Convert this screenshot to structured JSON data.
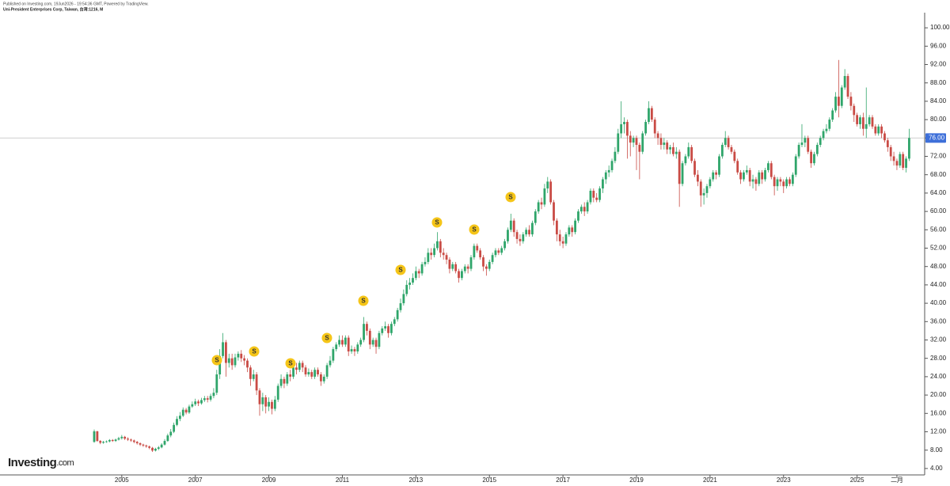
{
  "chart_data": {
    "type": "candlestick",
    "subtitle": "Published on Investing.com, 19Jun2026 - 19:54:36 GMT, Powered by TradingView.",
    "title": "Uni-President Enterprises Corp, Taiwan, 台湾:1216, M",
    "logo_main": "Investing",
    "logo_suffix": ".com",
    "up_color": "#2fa56a",
    "down_color": "#c94b45",
    "ylim": [
      2.6,
      103.3
    ],
    "yticks": [
      {
        "value": 4,
        "label": "4.00"
      },
      {
        "value": 8,
        "label": "8.00"
      },
      {
        "value": 12,
        "label": "12.00"
      },
      {
        "value": 16,
        "label": "16.00"
      },
      {
        "value": 20,
        "label": "20.00"
      },
      {
        "value": 24,
        "label": "24.00"
      },
      {
        "value": 28,
        "label": "28.00"
      },
      {
        "value": 32,
        "label": "32.00"
      },
      {
        "value": 36,
        "label": "36.00"
      },
      {
        "value": 40,
        "label": "40.00"
      },
      {
        "value": 44,
        "label": "44.00"
      },
      {
        "value": 48,
        "label": "48.00"
      },
      {
        "value": 52,
        "label": "52.00"
      },
      {
        "value": 56,
        "label": "56.00"
      },
      {
        "value": 60,
        "label": "60.00"
      },
      {
        "value": 64,
        "label": "64.00"
      },
      {
        "value": 68,
        "label": "68.00"
      },
      {
        "value": 72,
        "label": "72.00"
      },
      {
        "value": 76,
        "label": "76.00"
      },
      {
        "value": 80,
        "label": "80.00"
      },
      {
        "value": 84,
        "label": "84.00"
      },
      {
        "value": 88,
        "label": "88.00"
      },
      {
        "value": 92,
        "label": "92.00"
      },
      {
        "value": 96,
        "label": "96.00"
      },
      {
        "value": 100,
        "label": "100.00"
      }
    ],
    "last_price": {
      "value": 76,
      "label": "76.00"
    },
    "event_markers": [
      "S",
      "S",
      "S",
      "S",
      "S",
      "S",
      "S",
      "S",
      "S"
    ],
    "categories": [
      null,
      null,
      null,
      null,
      null,
      null,
      null,
      null,
      null,
      "2005",
      null,
      null,
      null,
      null,
      null,
      null,
      null,
      null,
      null,
      null,
      null,
      null,
      null,
      null,
      null,
      null,
      null,
      null,
      null,
      null,
      null,
      null,
      null,
      "2007",
      null,
      null,
      null,
      null,
      null,
      null,
      null,
      null,
      null,
      null,
      null,
      null,
      null,
      null,
      null,
      null,
      null,
      null,
      null,
      null,
      null,
      null,
      null,
      "2009",
      null,
      null,
      null,
      null,
      null,
      null,
      null,
      null,
      null,
      null,
      null,
      null,
      null,
      null,
      null,
      null,
      null,
      null,
      null,
      null,
      null,
      null,
      null,
      "2011",
      null,
      null,
      null,
      null,
      null,
      null,
      null,
      null,
      null,
      null,
      null,
      null,
      null,
      null,
      null,
      null,
      null,
      null,
      null,
      null,
      null,
      null,
      null,
      "2013",
      null,
      null,
      null,
      null,
      null,
      null,
      null,
      null,
      null,
      null,
      null,
      null,
      null,
      null,
      null,
      null,
      null,
      null,
      null,
      null,
      null,
      null,
      null,
      "2015",
      null,
      null,
      null,
      null,
      null,
      null,
      null,
      null,
      null,
      null,
      null,
      null,
      null,
      null,
      null,
      null,
      null,
      null,
      null,
      null,
      null,
      null,
      null,
      "2017",
      null,
      null,
      null,
      null,
      null,
      null,
      null,
      null,
      null,
      null,
      null,
      null,
      null,
      null,
      null,
      null,
      null,
      null,
      null,
      null,
      null,
      null,
      null,
      "2019",
      null,
      null,
      null,
      null,
      null,
      null,
      null,
      null,
      null,
      null,
      null,
      null,
      null,
      null,
      null,
      null,
      null,
      null,
      null,
      null,
      null,
      null,
      null,
      "2021",
      null,
      null,
      null,
      null,
      null,
      null,
      null,
      null,
      null,
      null,
      null,
      null,
      null,
      null,
      null,
      null,
      null,
      null,
      null,
      null,
      null,
      null,
      null,
      "2023",
      null,
      null,
      null,
      null,
      null,
      null,
      null,
      null,
      null,
      null,
      null,
      null,
      null,
      null,
      null,
      null,
      null,
      null,
      null,
      null,
      null,
      null,
      null,
      "2025",
      null,
      null,
      null,
      null,
      null,
      null,
      null,
      null,
      null,
      null,
      null,
      null,
      "二月",
      null,
      null,
      null,
      null
    ],
    "open": [
      9.8,
      12.1,
      10.0,
      9.6,
      9.8,
      9.9,
      10.2,
      10.0,
      10.3,
      10.6,
      10.9,
      10.5,
      10.3,
      10.1,
      9.8,
      9.5,
      9.2,
      9.0,
      8.8,
      8.5,
      7.9,
      8.3,
      8.6,
      9.2,
      10.0,
      11.2,
      12.0,
      13.5,
      14.8,
      15.5,
      16.8,
      16.2,
      17.5,
      18.0,
      18.6,
      18.2,
      18.9,
      19.3,
      19.0,
      19.8,
      20.5,
      24.5,
      28.5,
      31.5,
      27.0,
      28.0,
      26.5,
      28.2,
      29.0,
      28.0,
      27.5,
      26.0,
      23.5,
      24.5,
      21.0,
      18.0,
      19.5,
      17.5,
      18.5,
      17.0,
      19.0,
      22.0,
      23.5,
      22.5,
      24.5,
      24.0,
      26.0,
      25.5,
      27.0,
      26.0,
      24.5,
      25.0,
      24.0,
      25.5,
      24.5,
      23.0,
      24.0,
      26.5,
      27.5,
      30.0,
      31.0,
      32.0,
      31.0,
      32.5,
      29.5,
      30.0,
      29.5,
      31.0,
      32.0,
      35.5,
      34.0,
      31.0,
      32.0,
      30.5,
      33.5,
      34.5,
      35.0,
      33.5,
      35.5,
      36.5,
      38.5,
      40.0,
      42.0,
      44.0,
      44.5,
      45.5,
      47.0,
      46.5,
      48.5,
      49.0,
      51.0,
      50.5,
      52.0,
      53.5,
      51.0,
      50.5,
      49.5,
      47.5,
      48.5,
      47.0,
      45.5,
      47.0,
      48.0,
      47.5,
      50.0,
      52.5,
      51.5,
      50.0,
      48.0,
      47.5,
      49.0,
      50.5,
      51.5,
      51.0,
      52.0,
      53.5,
      56.0,
      58.0,
      55.5,
      54.0,
      53.5,
      55.0,
      56.0,
      55.0,
      57.5,
      60.0,
      62.0,
      61.5,
      65.0,
      66.5,
      62.0,
      58.0,
      55.0,
      53.5,
      53.0,
      55.0,
      56.5,
      55.5,
      58.0,
      60.0,
      61.0,
      60.0,
      62.0,
      64.5,
      63.0,
      62.5,
      65.0,
      67.0,
      68.5,
      69.0,
      71.0,
      73.0,
      77.0,
      79.0,
      79.5,
      76.5,
      75.0,
      76.0,
      74.5,
      73.0,
      77.0,
      79.5,
      82.5,
      80.0,
      77.0,
      76.0,
      74.5,
      75.0,
      73.5,
      74.0,
      72.5,
      73.0,
      66.0,
      70.5,
      72.0,
      74.0,
      71.0,
      68.0,
      66.5,
      63.5,
      64.0,
      65.5,
      67.0,
      68.5,
      68.0,
      72.0,
      74.5,
      76.0,
      74.0,
      73.0,
      71.0,
      68.5,
      67.0,
      68.5,
      69.0,
      66.5,
      67.0,
      66.0,
      68.5,
      67.0,
      69.0,
      70.5,
      67.5,
      65.5,
      67.0,
      66.5,
      65.5,
      67.0,
      66.0,
      68.0,
      72.0,
      74.5,
      75.0,
      76.0,
      73.0,
      70.5,
      72.5,
      74.5,
      76.0,
      77.5,
      78.0,
      80.0,
      82.0,
      85.0,
      83.0,
      87.0,
      89.5,
      85.0,
      83.0,
      81.0,
      79.0,
      80.5,
      78.0,
      79.0,
      80.5,
      78.5,
      77.0,
      78.5,
      77.0,
      75.5,
      74.0,
      72.0,
      71.0,
      70.0,
      72.5,
      69.5,
      71.5
    ],
    "high": [
      12.5,
      12.2,
      10.2,
      10.0,
      10.1,
      10.4,
      10.4,
      10.5,
      10.9,
      11.3,
      11.1,
      10.8,
      10.5,
      10.3,
      10.0,
      9.7,
      9.4,
      9.2,
      9.0,
      8.7,
      8.5,
      8.9,
      9.5,
      10.4,
      11.6,
      12.6,
      14.0,
      15.4,
      16.3,
      17.3,
      17.2,
      17.9,
      18.6,
      19.2,
      19.0,
      19.4,
      19.8,
      19.8,
      20.3,
      21.5,
      25.5,
      30.0,
      33.5,
      32.0,
      29.0,
      29.0,
      29.0,
      29.5,
      29.8,
      28.7,
      28.0,
      26.5,
      25.5,
      25.0,
      21.5,
      20.5,
      20.0,
      19.5,
      19.0,
      19.8,
      22.5,
      24.5,
      24.0,
      25.0,
      25.5,
      26.5,
      27.0,
      27.5,
      27.5,
      26.5,
      25.8,
      25.5,
      26.0,
      26.0,
      25.0,
      24.5,
      27.0,
      28.5,
      30.5,
      31.5,
      33.0,
      33.0,
      33.0,
      33.0,
      30.8,
      30.5,
      31.5,
      32.5,
      37.0,
      36.0,
      34.5,
      32.5,
      32.5,
      34.0,
      35.0,
      36.0,
      35.5,
      36.0,
      37.0,
      39.0,
      41.0,
      43.0,
      45.0,
      45.5,
      46.5,
      48.0,
      47.5,
      49.0,
      50.0,
      52.0,
      52.0,
      53.0,
      55.5,
      54.0,
      52.0,
      51.0,
      50.0,
      49.0,
      49.0,
      47.5,
      47.5,
      48.5,
      48.5,
      50.5,
      53.0,
      53.0,
      52.0,
      50.5,
      48.5,
      49.5,
      51.0,
      52.0,
      52.0,
      52.5,
      54.0,
      56.5,
      59.5,
      58.5,
      56.0,
      55.0,
      55.5,
      56.5,
      57.0,
      58.0,
      60.5,
      62.5,
      63.0,
      66.0,
      67.5,
      67.0,
      62.5,
      58.5,
      56.0,
      54.5,
      55.5,
      57.0,
      57.0,
      58.5,
      60.5,
      61.5,
      62.0,
      62.5,
      65.0,
      65.0,
      64.0,
      65.5,
      67.5,
      69.0,
      70.0,
      71.5,
      74.0,
      78.0,
      84.0,
      80.5,
      80.0,
      77.5,
      76.5,
      76.5,
      75.0,
      77.5,
      80.0,
      84.0,
      83.0,
      80.5,
      77.5,
      77.0,
      76.0,
      75.5,
      74.5,
      75.0,
      74.0,
      73.5,
      71.0,
      72.5,
      75.0,
      74.5,
      71.5,
      69.0,
      67.0,
      65.0,
      66.0,
      67.5,
      69.0,
      69.0,
      72.5,
      75.0,
      77.5,
      76.5,
      74.5,
      73.5,
      71.5,
      69.0,
      69.0,
      70.0,
      69.5,
      68.0,
      67.5,
      69.0,
      69.0,
      69.5,
      71.0,
      71.0,
      68.0,
      67.5,
      67.5,
      67.0,
      67.5,
      67.5,
      68.5,
      72.5,
      75.0,
      79.0,
      76.5,
      76.5,
      73.5,
      73.0,
      75.0,
      76.5,
      78.0,
      79.0,
      80.5,
      82.5,
      86.0,
      93.0,
      87.5,
      91.0,
      90.0,
      86.0,
      83.5,
      81.5,
      81.0,
      81.5,
      87.0,
      81.0,
      81.0,
      79.0,
      79.0,
      79.0,
      77.5,
      76.0,
      74.5,
      73.0,
      71.5,
      73.0,
      73.0,
      72.0,
      78.0
    ],
    "low": [
      9.6,
      9.8,
      9.3,
      9.4,
      9.6,
      9.7,
      9.8,
      9.8,
      10.1,
      10.3,
      10.2,
      10.0,
      9.8,
      9.5,
      9.2,
      8.9,
      8.7,
      8.5,
      8.2,
      7.6,
      7.7,
      8.0,
      8.4,
      9.0,
      9.8,
      10.8,
      11.7,
      13.2,
      14.3,
      15.2,
      15.8,
      15.9,
      17.2,
      17.6,
      17.6,
      17.9,
      18.5,
      18.4,
      18.6,
      19.3,
      20.0,
      23.5,
      28.0,
      24.0,
      26.0,
      25.5,
      26.0,
      27.5,
      27.2,
      26.5,
      25.0,
      22.0,
      23.0,
      20.0,
      15.5,
      16.5,
      16.0,
      16.5,
      15.8,
      16.5,
      18.5,
      21.5,
      21.5,
      22.0,
      23.0,
      23.5,
      24.5,
      25.0,
      25.0,
      24.0,
      24.0,
      23.5,
      23.5,
      24.0,
      22.0,
      22.5,
      23.5,
      26.0,
      27.0,
      29.5,
      30.5,
      30.5,
      30.5,
      28.5,
      29.0,
      28.5,
      29.0,
      30.5,
      31.5,
      33.0,
      30.0,
      30.5,
      29.0,
      30.0,
      33.0,
      34.0,
      32.5,
      33.0,
      35.0,
      36.0,
      38.0,
      39.5,
      41.5,
      43.0,
      44.0,
      45.0,
      45.5,
      46.0,
      48.0,
      48.5,
      49.5,
      50.0,
      51.5,
      50.0,
      49.5,
      48.5,
      46.5,
      47.0,
      46.5,
      44.5,
      45.0,
      46.5,
      46.5,
      47.0,
      49.5,
      51.0,
      49.5,
      47.0,
      46.0,
      47.0,
      48.5,
      50.0,
      50.5,
      50.5,
      51.5,
      53.0,
      55.5,
      54.5,
      53.0,
      52.5,
      53.0,
      54.5,
      54.5,
      54.5,
      57.0,
      59.5,
      60.5,
      61.0,
      64.0,
      61.5,
      57.0,
      53.5,
      52.5,
      52.0,
      52.5,
      54.5,
      54.5,
      55.0,
      57.5,
      59.5,
      59.0,
      59.5,
      61.5,
      62.0,
      62.0,
      62.0,
      64.0,
      66.0,
      67.5,
      68.5,
      70.5,
      72.5,
      76.0,
      77.0,
      71.5,
      72.0,
      74.0,
      69.0,
      67.0,
      72.5,
      76.5,
      79.0,
      79.5,
      76.0,
      74.5,
      73.5,
      73.5,
      72.5,
      72.5,
      72.0,
      71.5,
      61.0,
      65.5,
      70.0,
      71.5,
      70.5,
      67.5,
      65.5,
      61.0,
      61.5,
      63.0,
      65.0,
      66.5,
      67.0,
      67.5,
      71.5,
      74.0,
      73.5,
      72.5,
      70.5,
      68.0,
      66.0,
      66.5,
      68.0,
      65.5,
      65.0,
      64.5,
      65.5,
      66.0,
      66.5,
      68.5,
      67.0,
      63.5,
      64.5,
      65.5,
      64.0,
      65.0,
      65.5,
      65.5,
      67.5,
      71.5,
      74.0,
      74.0,
      72.5,
      69.5,
      70.0,
      72.0,
      74.0,
      75.5,
      77.0,
      77.5,
      79.5,
      81.5,
      80.5,
      82.5,
      86.5,
      84.5,
      82.0,
      79.5,
      78.5,
      78.0,
      76.5,
      76.0,
      78.5,
      78.0,
      76.5,
      76.5,
      76.0,
      75.0,
      73.0,
      71.0,
      70.0,
      69.0,
      69.5,
      69.0,
      68.5,
      71.0
    ],
    "close": [
      12.1,
      10.0,
      9.6,
      9.8,
      9.9,
      10.2,
      10.0,
      10.3,
      10.6,
      10.9,
      10.5,
      10.3,
      10.1,
      9.8,
      9.5,
      9.2,
      9.0,
      8.8,
      8.5,
      7.9,
      8.3,
      8.6,
      9.2,
      10.0,
      11.2,
      12.0,
      13.5,
      14.8,
      15.5,
      16.8,
      16.2,
      17.5,
      18.0,
      18.6,
      18.2,
      18.9,
      19.3,
      19.0,
      19.8,
      20.5,
      24.5,
      28.5,
      31.5,
      27.0,
      28.0,
      26.5,
      28.2,
      29.0,
      28.0,
      27.5,
      26.0,
      23.5,
      24.5,
      21.0,
      18.0,
      19.5,
      17.5,
      18.5,
      17.0,
      19.0,
      22.0,
      23.5,
      22.5,
      24.5,
      24.0,
      26.0,
      25.5,
      27.0,
      26.0,
      24.5,
      25.0,
      24.0,
      25.5,
      24.5,
      23.0,
      24.0,
      26.5,
      27.5,
      30.0,
      31.0,
      32.0,
      31.0,
      32.5,
      29.5,
      30.0,
      29.5,
      31.0,
      32.0,
      35.5,
      34.0,
      31.0,
      32.0,
      30.5,
      33.5,
      34.5,
      35.0,
      33.5,
      35.5,
      36.5,
      38.5,
      40.0,
      42.0,
      44.0,
      44.5,
      45.5,
      47.0,
      46.5,
      48.5,
      49.0,
      51.0,
      50.5,
      52.0,
      53.5,
      51.0,
      50.5,
      49.5,
      47.5,
      48.5,
      47.0,
      45.5,
      47.0,
      48.0,
      47.5,
      50.0,
      52.5,
      51.5,
      50.0,
      48.0,
      47.5,
      49.0,
      50.5,
      51.5,
      51.0,
      52.0,
      53.5,
      56.0,
      58.0,
      55.5,
      54.0,
      53.5,
      55.0,
      56.0,
      55.0,
      57.5,
      60.0,
      62.0,
      61.5,
      65.0,
      66.5,
      62.0,
      58.0,
      55.0,
      53.5,
      53.0,
      55.0,
      56.5,
      55.5,
      58.0,
      60.0,
      61.0,
      60.0,
      62.0,
      64.5,
      63.0,
      62.5,
      65.0,
      67.0,
      68.5,
      69.0,
      71.0,
      73.0,
      77.0,
      79.0,
      79.5,
      76.5,
      75.0,
      76.0,
      74.5,
      73.0,
      77.0,
      79.5,
      82.5,
      80.0,
      77.0,
      76.0,
      74.5,
      75.0,
      73.5,
      74.0,
      72.5,
      73.0,
      66.0,
      70.5,
      72.0,
      74.0,
      71.0,
      68.0,
      66.5,
      63.5,
      64.0,
      65.5,
      67.0,
      68.5,
      68.0,
      72.0,
      74.5,
      76.0,
      74.0,
      73.0,
      71.0,
      68.5,
      67.0,
      68.5,
      69.0,
      66.5,
      67.0,
      66.0,
      68.5,
      67.0,
      69.0,
      70.5,
      67.5,
      65.5,
      67.0,
      66.5,
      65.5,
      67.0,
      66.0,
      68.0,
      72.0,
      74.5,
      75.0,
      76.0,
      73.0,
      70.5,
      72.5,
      74.5,
      76.0,
      77.5,
      78.0,
      80.0,
      82.0,
      85.0,
      83.0,
      87.0,
      89.5,
      85.0,
      83.0,
      81.0,
      79.0,
      80.5,
      78.0,
      79.0,
      80.5,
      78.5,
      77.0,
      78.5,
      77.0,
      75.5,
      74.0,
      72.0,
      71.0,
      70.0,
      72.5,
      69.5,
      71.5,
      76.0
    ]
  }
}
